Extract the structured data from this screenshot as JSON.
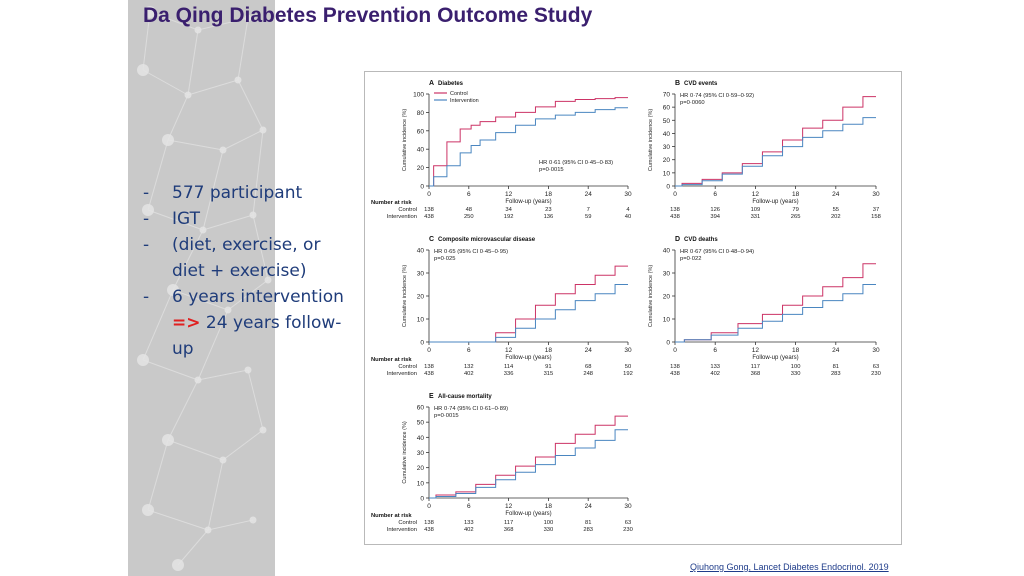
{
  "slide": {
    "title": "Da Qing Diabetes Prevention Outcome Study",
    "bullets": [
      {
        "dash": "-",
        "text": "577 participant"
      },
      {
        "dash": "-",
        "text": "IGT"
      },
      {
        "dash": "-",
        "text": "(diet, exercise, or diet + exercise)"
      },
      {
        "dash": "-",
        "text": "6 years intervention"
      }
    ],
    "bullet_arrow": "=>",
    "bullet_arrow_text": "24 years follow-up",
    "citation": "Qiuhong Gong, Lancet Diabetes Endocrinol. 2019"
  },
  "colors": {
    "title": "#3a1f6e",
    "bullet_text": "#1f3c7a",
    "arrow": "#e02020",
    "control": "#cc3366",
    "intervention": "#4a86c0",
    "left_panel": "#c9c9c9"
  },
  "figure": {
    "number_at_risk_label": "Number at risk",
    "row_labels": [
      "Control",
      "Intervention"
    ]
  },
  "chart_data": [
    {
      "id": "A",
      "type": "line",
      "panel_letter": "A",
      "title": "Diabetes",
      "xlabel": "Follow-up (years)",
      "ylabel": "Cumulative incidence (%)",
      "xlim": [
        0,
        30
      ],
      "ylim": [
        0,
        100
      ],
      "xticks": [
        0,
        6,
        12,
        18,
        24,
        30
      ],
      "yticks": [
        0,
        20,
        40,
        60,
        80,
        100
      ],
      "legend": [
        "Control",
        "Intervention"
      ],
      "annotation": [
        "HR 0·61 (95% CI 0·45–0·83)",
        "p=0·0015"
      ],
      "series": [
        {
          "name": "Control",
          "x": [
            0,
            2,
            4,
            6,
            7,
            9,
            12,
            15,
            18,
            21,
            24,
            27,
            30
          ],
          "y": [
            0,
            22,
            48,
            62,
            66,
            70,
            75,
            80,
            86,
            92,
            94,
            95,
            96
          ]
        },
        {
          "name": "Intervention",
          "x": [
            0,
            2,
            4,
            6,
            7,
            9,
            12,
            15,
            18,
            21,
            24,
            27,
            30
          ],
          "y": [
            0,
            10,
            22,
            36,
            44,
            50,
            58,
            66,
            73,
            77,
            80,
            83,
            85
          ]
        }
      ],
      "risk_times": [
        0,
        6,
        12,
        18,
        24,
        30
      ],
      "risk_control": [
        "138",
        "48",
        "34",
        "23",
        "7",
        "4"
      ],
      "risk_intervention": [
        "438",
        "250",
        "192",
        "136",
        "59",
        "40"
      ]
    },
    {
      "id": "B",
      "type": "line",
      "panel_letter": "B",
      "title": "CVD events",
      "xlabel": "Follow-up (years)",
      "ylabel": "Cumulative incidence (%)",
      "xlim": [
        0,
        30
      ],
      "ylim": [
        0,
        70
      ],
      "xticks": [
        0,
        6,
        12,
        18,
        24,
        30
      ],
      "yticks": [
        0,
        10,
        20,
        30,
        40,
        50,
        60,
        70
      ],
      "annotation": [
        "HR 0·74 (95% CI 0·59–0·92)",
        "p=0·0060"
      ],
      "series": [
        {
          "name": "Control",
          "x": [
            0,
            3,
            6,
            9,
            12,
            15,
            18,
            21,
            24,
            27,
            30
          ],
          "y": [
            0,
            2,
            5,
            10,
            17,
            26,
            35,
            44,
            50,
            60,
            68
          ]
        },
        {
          "name": "Intervention",
          "x": [
            0,
            3,
            6,
            9,
            12,
            15,
            18,
            21,
            24,
            27,
            30
          ],
          "y": [
            0,
            1,
            4,
            9,
            15,
            23,
            30,
            37,
            42,
            47,
            52
          ]
        }
      ],
      "risk_times": [
        0,
        6,
        12,
        18,
        24,
        30
      ],
      "risk_control": [
        "138",
        "126",
        "109",
        "79",
        "55",
        "37"
      ],
      "risk_intervention": [
        "438",
        "394",
        "331",
        "265",
        "202",
        "158"
      ]
    },
    {
      "id": "C",
      "type": "line",
      "panel_letter": "C",
      "title": "Composite microvascular disease",
      "xlabel": "Follow-up (years)",
      "ylabel": "Cumulative incidence (%)",
      "xlim": [
        0,
        30
      ],
      "ylim": [
        0,
        40
      ],
      "xticks": [
        0,
        6,
        12,
        18,
        24,
        30
      ],
      "yticks": [
        0,
        10,
        20,
        30,
        40
      ],
      "annotation": [
        "HR 0·65 (95% CI 0·45–0·95)",
        "p=0·025"
      ],
      "series": [
        {
          "name": "Control",
          "x": [
            0,
            9,
            12,
            15,
            18,
            21,
            24,
            27,
            30
          ],
          "y": [
            0,
            0,
            4,
            10,
            16,
            21,
            25,
            29,
            33
          ]
        },
        {
          "name": "Intervention",
          "x": [
            0,
            9,
            12,
            15,
            18,
            21,
            24,
            27,
            30
          ],
          "y": [
            0,
            0,
            2,
            6,
            10,
            14,
            18,
            21,
            25
          ]
        }
      ],
      "risk_times": [
        0,
        6,
        12,
        18,
        24,
        30
      ],
      "risk_control": [
        "138",
        "132",
        "114",
        "91",
        "68",
        "50"
      ],
      "risk_intervention": [
        "438",
        "402",
        "336",
        "315",
        "248",
        "192"
      ]
    },
    {
      "id": "D",
      "type": "line",
      "panel_letter": "D",
      "title": "CVD deaths",
      "xlabel": "Follow-up (years)",
      "ylabel": "Cumulative incidence (%)",
      "xlim": [
        0,
        30
      ],
      "ylim": [
        0,
        40
      ],
      "xticks": [
        0,
        6,
        12,
        18,
        24,
        30
      ],
      "yticks": [
        0,
        10,
        20,
        30,
        40
      ],
      "annotation": [
        "HR 0·67 (95% CI 0·48–0·94)",
        "p=0·022"
      ],
      "series": [
        {
          "name": "Control",
          "x": [
            0,
            4,
            8,
            12,
            15,
            18,
            21,
            24,
            27,
            30
          ],
          "y": [
            0,
            1,
            4,
            8,
            12,
            16,
            20,
            24,
            28,
            34
          ]
        },
        {
          "name": "Intervention",
          "x": [
            0,
            4,
            8,
            12,
            15,
            18,
            21,
            24,
            27,
            30
          ],
          "y": [
            0,
            1,
            3,
            6,
            9,
            12,
            15,
            18,
            21,
            25
          ]
        }
      ],
      "risk_times": [
        0,
        6,
        12,
        18,
        24,
        30
      ],
      "risk_control": [
        "138",
        "133",
        "117",
        "100",
        "81",
        "63"
      ],
      "risk_intervention": [
        "438",
        "402",
        "368",
        "330",
        "283",
        "230"
      ]
    },
    {
      "id": "E",
      "type": "line",
      "panel_letter": "E",
      "title": "All-cause mortality",
      "xlabel": "Follow-up (years)",
      "ylabel": "Cumulative incidence (%)",
      "xlim": [
        0,
        30
      ],
      "ylim": [
        0,
        60
      ],
      "xticks": [
        0,
        6,
        12,
        18,
        24,
        30
      ],
      "yticks": [
        0,
        10,
        20,
        30,
        40,
        50,
        60
      ],
      "annotation": [
        "HR 0·74 (95% CI 0·61–0·89)",
        "p=0·0015"
      ],
      "series": [
        {
          "name": "Control",
          "x": [
            0,
            3,
            6,
            9,
            12,
            15,
            18,
            21,
            24,
            27,
            30
          ],
          "y": [
            0,
            2,
            4,
            9,
            15,
            21,
            27,
            36,
            42,
            48,
            54
          ]
        },
        {
          "name": "Intervention",
          "x": [
            0,
            3,
            6,
            9,
            12,
            15,
            18,
            21,
            24,
            27,
            30
          ],
          "y": [
            0,
            1,
            3,
            7,
            12,
            17,
            22,
            28,
            33,
            38,
            45
          ]
        }
      ],
      "risk_times": [
        0,
        6,
        12,
        18,
        24,
        30
      ],
      "risk_control": [
        "138",
        "133",
        "117",
        "100",
        "81",
        "63"
      ],
      "risk_intervention": [
        "438",
        "402",
        "368",
        "330",
        "283",
        "230"
      ]
    }
  ]
}
